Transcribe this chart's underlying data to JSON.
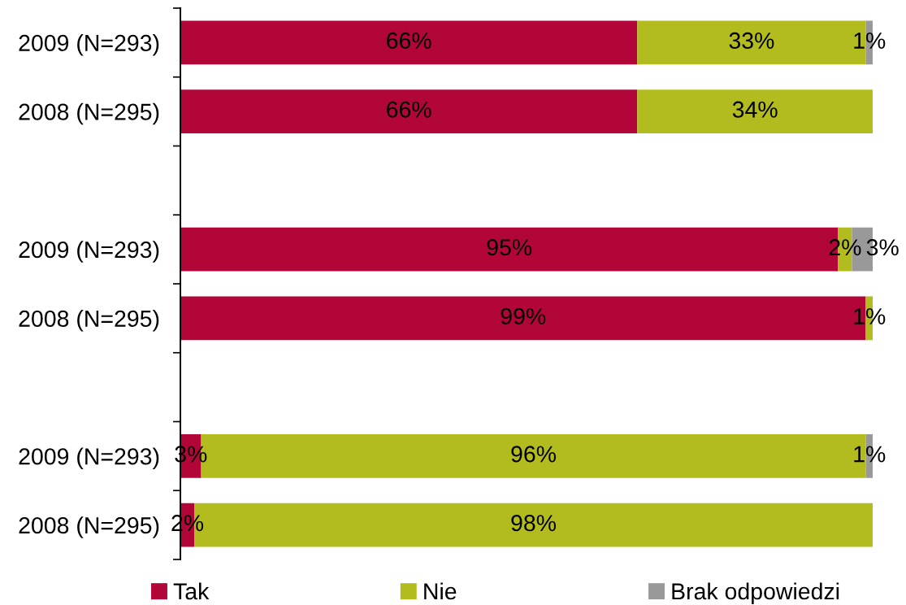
{
  "chart_data": {
    "type": "bar",
    "orientation": "horizontal",
    "stacked": true,
    "categories": [
      "2009 (N=293)",
      "2008 (N=295)",
      null,
      "2009 (N=293)",
      "2008 (N=295)",
      null,
      "2009 (N=293)",
      "2008 (N=295)"
    ],
    "series": [
      {
        "name": "Tak",
        "color": "#b10637",
        "values": [
          66,
          66,
          null,
          95,
          99,
          null,
          3,
          2
        ],
        "value_labels": [
          "66%",
          "66%",
          null,
          "95%",
          "99%",
          null,
          "3%",
          "2%"
        ]
      },
      {
        "name": "Nie",
        "color": "#b3bc1f",
        "values": [
          33,
          34,
          null,
          2,
          1,
          null,
          96,
          98
        ],
        "value_labels": [
          "33%",
          "34%",
          null,
          "2%",
          "1%",
          null,
          "96%",
          "98%"
        ]
      },
      {
        "name": "Brak odpowiedzi",
        "color": "#999999",
        "values": [
          1,
          null,
          null,
          3,
          null,
          null,
          1,
          null
        ],
        "value_labels": [
          "1%",
          null,
          null,
          "3%",
          null,
          null,
          "1%",
          null
        ]
      }
    ],
    "legend": "bottom",
    "tick_labels": "y"
  }
}
